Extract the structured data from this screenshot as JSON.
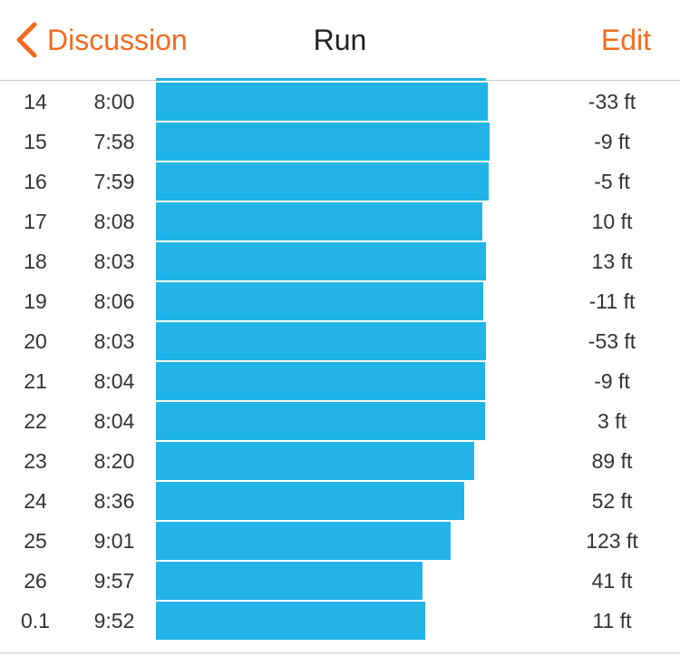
{
  "nav": {
    "back_label": "Discussion",
    "title": "Run",
    "edit_label": "Edit",
    "back_icon": "chevron-left-icon",
    "accent_color": "#f26b1d"
  },
  "bar_color": "#22b4e8",
  "splits": [
    {
      "mile": "14",
      "pace": "8:00",
      "elevation": "-33 ft"
    },
    {
      "mile": "15",
      "pace": "7:58",
      "elevation": "-9 ft"
    },
    {
      "mile": "16",
      "pace": "7:59",
      "elevation": "-5 ft"
    },
    {
      "mile": "17",
      "pace": "8:08",
      "elevation": "10 ft"
    },
    {
      "mile": "18",
      "pace": "8:03",
      "elevation": "13 ft"
    },
    {
      "mile": "19",
      "pace": "8:06",
      "elevation": "-11 ft"
    },
    {
      "mile": "20",
      "pace": "8:03",
      "elevation": "-53 ft"
    },
    {
      "mile": "21",
      "pace": "8:04",
      "elevation": "-9 ft"
    },
    {
      "mile": "22",
      "pace": "8:04",
      "elevation": "3 ft"
    },
    {
      "mile": "23",
      "pace": "8:20",
      "elevation": "89 ft"
    },
    {
      "mile": "24",
      "pace": "8:36",
      "elevation": "52 ft"
    },
    {
      "mile": "25",
      "pace": "9:01",
      "elevation": "123 ft"
    },
    {
      "mile": "26",
      "pace": "9:57",
      "elevation": "41 ft"
    },
    {
      "mile": "0.1",
      "pace": "9:52",
      "elevation": "11 ft"
    }
  ]
}
